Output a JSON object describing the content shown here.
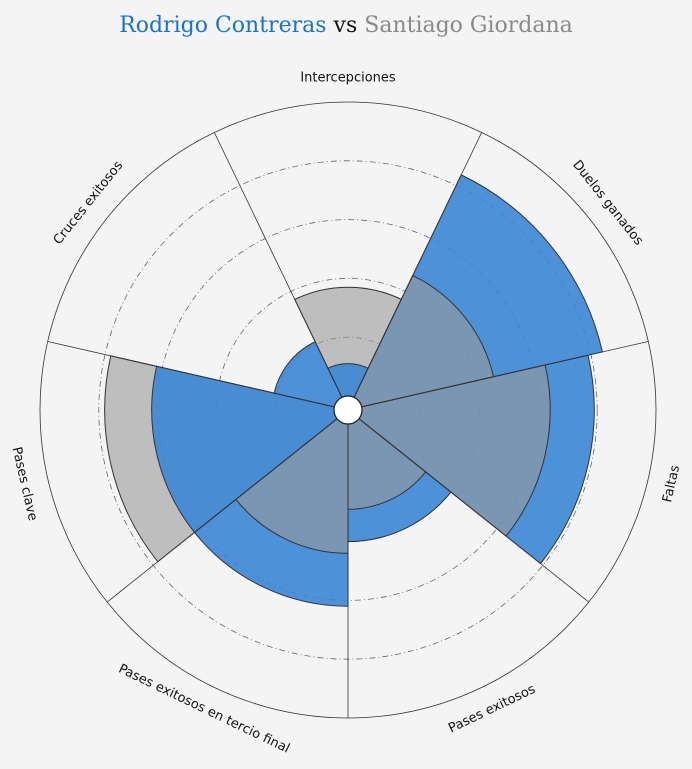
{
  "chart_data": {
    "type": "polar_bar",
    "title_parts": [
      "Rodrigo Contreras",
      "vs",
      "Santiago Giordana"
    ],
    "categories": [
      "Intercepciones",
      "Duelos ganados",
      "Faltas",
      "Pases exitosos",
      "Pases exitosos en tercio final",
      "Pases clave",
      "Cruces exitosos"
    ],
    "series": [
      {
        "name": "Rodrigo Contreras",
        "color": "#3b86d6",
        "values": [
          11,
          84,
          79,
          40,
          62,
          62,
          21
        ]
      },
      {
        "name": "Santiago Giordana",
        "color": "#9a9a9a",
        "values": [
          37,
          46,
          64,
          29,
          44,
          78,
          0
        ]
      }
    ],
    "rlim": [
      0,
      100
    ],
    "rticks": [
      20,
      40,
      60,
      80
    ]
  }
}
